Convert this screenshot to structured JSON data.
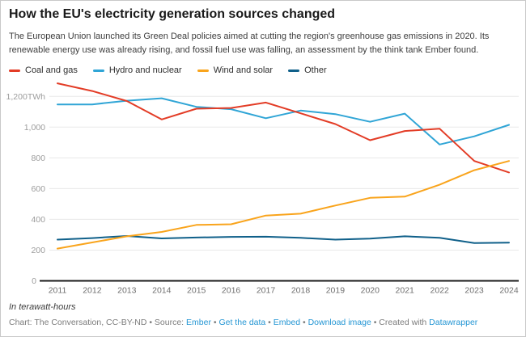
{
  "header": {
    "title": "How the EU's electricity generation sources changed",
    "subtitle": "The European Union launched its Green Deal policies aimed at cutting the region's greenhouse gas emissions in 2020. Its renewable energy use was already rising, and fossil fuel use was falling, an assessment by the think tank Ember found."
  },
  "chart_data": {
    "type": "line",
    "title": "How the EU's electricity generation sources changed",
    "unit": "TWh",
    "x": [
      2011,
      2012,
      2013,
      2014,
      2015,
      2016,
      2017,
      2018,
      2019,
      2020,
      2021,
      2022,
      2023,
      2024
    ],
    "series": [
      {
        "name": "Coal and gas",
        "color": "#e33c26",
        "values": [
          1285,
          1235,
          1170,
          1050,
          1120,
          1125,
          1160,
          1090,
          1020,
          915,
          975,
          990,
          780,
          705
        ]
      },
      {
        "name": "Hydro and nuclear",
        "color": "#30a5d6",
        "values": [
          1148,
          1148,
          1172,
          1188,
          1132,
          1117,
          1058,
          1108,
          1085,
          1035,
          1088,
          887,
          940,
          1015
        ]
      },
      {
        "name": "Wind and solar",
        "color": "#f9a41c",
        "values": [
          210,
          250,
          290,
          318,
          364,
          368,
          425,
          437,
          490,
          540,
          548,
          625,
          720,
          780
        ]
      },
      {
        "name": "Other",
        "color": "#10608a",
        "values": [
          268,
          278,
          292,
          276,
          282,
          286,
          287,
          280,
          268,
          275,
          290,
          280,
          246,
          248
        ]
      }
    ],
    "y_ticks": [
      0,
      200,
      400,
      600,
      800,
      1000,
      1200
    ],
    "y_tick_labels": [
      "0",
      "200",
      "400",
      "600",
      "800",
      "1,000",
      "1,200TWh"
    ],
    "ylim": [
      0,
      1300
    ],
    "grid": true,
    "legend_position": "top"
  },
  "footer": {
    "note": "In terawatt-hours",
    "credit_parts": [
      {
        "text": "Chart: The Conversation, CC-BY-ND • Source: "
      },
      {
        "link": "Ember"
      },
      {
        "text": " • "
      },
      {
        "link": "Get the data"
      },
      {
        "text": " • "
      },
      {
        "link": "Embed"
      },
      {
        "text": "  • "
      },
      {
        "link": "Download image"
      },
      {
        "text": " • Created with "
      },
      {
        "link": "Datawrapper"
      }
    ]
  }
}
